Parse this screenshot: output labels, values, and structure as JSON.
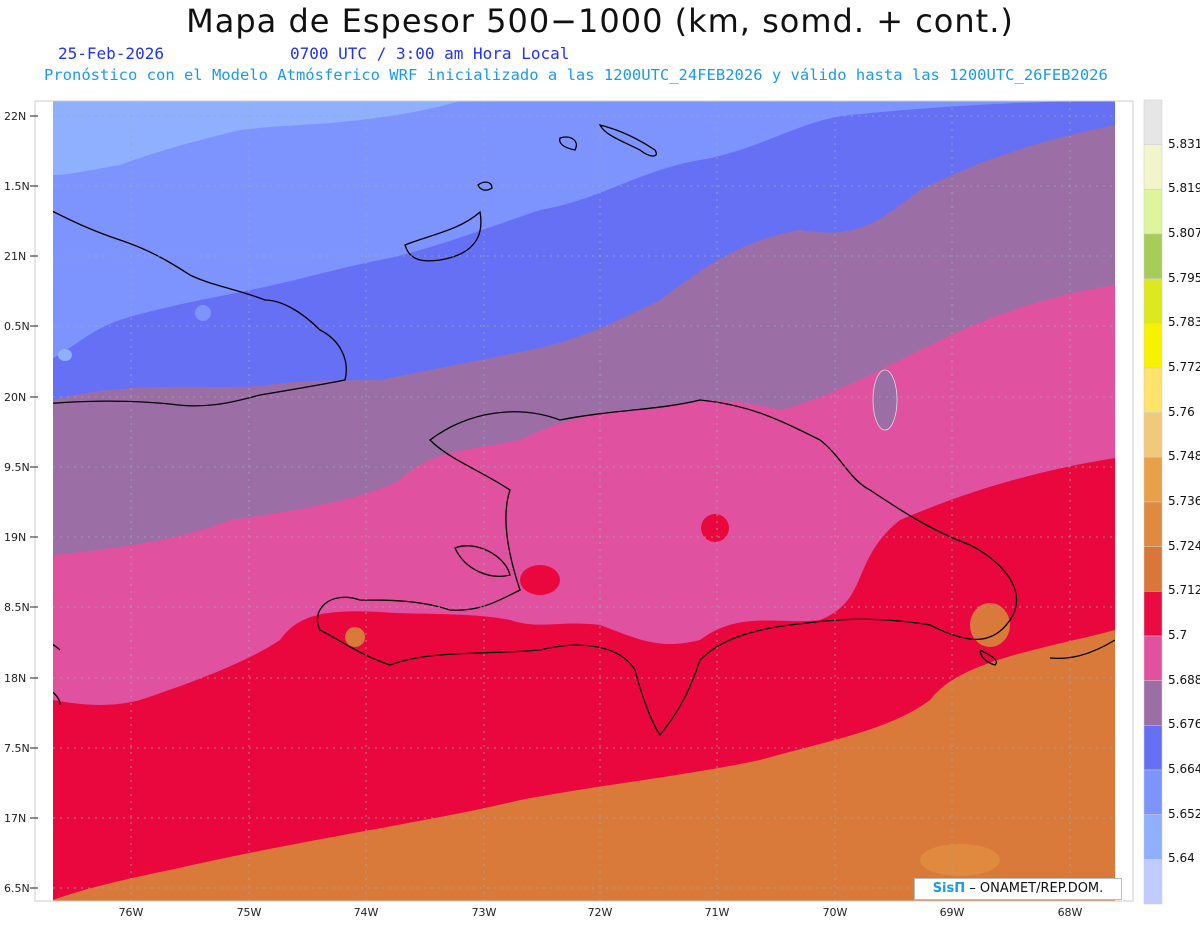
{
  "header": {
    "title": "Mapa de Espesor 500−1000 (km, somd. + cont.)",
    "date": "25-Feb-2026",
    "valid_time": "0700 UTC / 3:00 am Hora Local",
    "description": "Pronóstico con el Modelo Atmósferico WRF inicializado a las 1200UTC_24FEB2026 y válido hasta las  1200UTC_26FEB2026"
  },
  "map": {
    "lat_labels": [
      "22N",
      "1.5N",
      "21N",
      "0.5N",
      "20N",
      "9.5N",
      "19N",
      "8.5N",
      "18N",
      "7.5N",
      "17N",
      "6.5N"
    ],
    "lon_labels": [
      "76W",
      "75W",
      "74W",
      "73W",
      "72W",
      "71W",
      "70W",
      "69W",
      "68W"
    ],
    "bands_color_order": [
      "#8fb0ff",
      "#7d94ff",
      "#6670f5",
      "#9b6fa6",
      "#e0529f",
      "#e9073e",
      "#d97a3a"
    ]
  },
  "colorbar": {
    "levels": [
      "5.831",
      "5.819",
      "5.807",
      "5.795",
      "5.783",
      "5.772",
      "5.76",
      "5.748",
      "5.736",
      "5.724",
      "5.712",
      "5.7",
      "5.688",
      "5.676",
      "5.664",
      "5.652",
      "5.64"
    ],
    "colors": [
      "#e6e6e6",
      "#f1f5c8",
      "#dff59c",
      "#a7cc5a",
      "#dde81e",
      "#f7f200",
      "#fde36a",
      "#f1c97a",
      "#e8a04a",
      "#df8a3e",
      "#d9773a",
      "#ea0c40",
      "#e0529f",
      "#9b6fa6",
      "#6670f5",
      "#7d94ff",
      "#8fb0ff",
      "#c0cbff"
    ]
  },
  "credit": {
    "logo": "SisΠ",
    "text": "– ONAMET/REP.DOM."
  }
}
